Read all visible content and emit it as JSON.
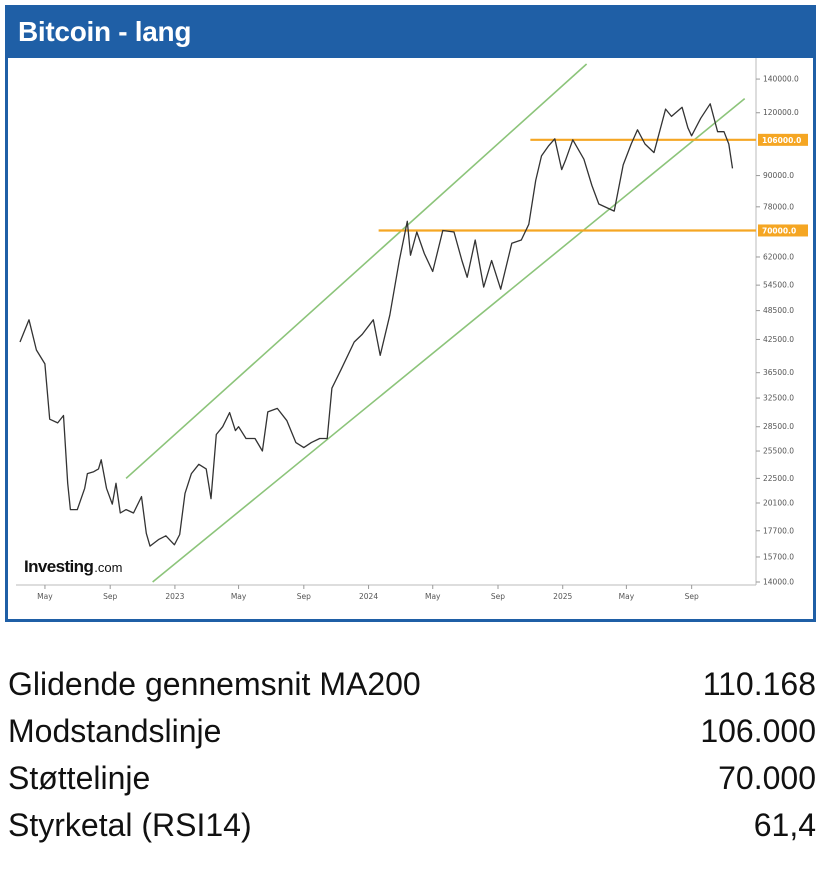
{
  "header": {
    "title": "Bitcoin - lang"
  },
  "logo": {
    "brand": "Investing",
    "suffix": ".com"
  },
  "colors": {
    "header_bg": "#1f5fa6",
    "price_line": "#333333",
    "channel": "#8cc47a",
    "level": "#f5a623"
  },
  "chart_data": {
    "type": "line",
    "title": "Bitcoin - lang",
    "xlabel": "",
    "ylabel": "",
    "grid": false,
    "x_ticks": [
      "May",
      "Sep",
      "2023",
      "May",
      "Sep",
      "2024",
      "May",
      "Sep",
      "2025",
      "May",
      "Sep"
    ],
    "x_tick_dates": [
      "2022-05-01",
      "2022-09-01",
      "2023-01-01",
      "2023-05-01",
      "2023-09-01",
      "2024-01-01",
      "2024-05-01",
      "2024-09-01",
      "2025-01-01",
      "2025-05-01",
      "2025-09-01"
    ],
    "y_ticks": [
      "140000.0",
      "120000.0",
      "90000.0",
      "78000.0",
      "62000.0",
      "54500.0",
      "48500.0",
      "42500.0",
      "36500.0",
      "32500.0",
      "28500.0",
      "25500.0",
      "22500.0",
      "20100.0",
      "17700.0",
      "15700.0",
      "14000.0"
    ],
    "y_scale": "log",
    "y_range": [
      14000,
      150000
    ],
    "series": [
      {
        "values": [
          [
            "2022-03-15",
            42000
          ],
          [
            "2022-04-01",
            46500
          ],
          [
            "2022-04-15",
            40500
          ],
          [
            "2022-05-01",
            38000
          ],
          [
            "2022-05-10",
            29500
          ],
          [
            "2022-05-25",
            29000
          ],
          [
            "2022-06-05",
            30000
          ],
          [
            "2022-06-13",
            22000
          ],
          [
            "2022-06-18",
            19500
          ],
          [
            "2022-07-01",
            19500
          ],
          [
            "2022-07-15",
            21500
          ],
          [
            "2022-07-20",
            23000
          ],
          [
            "2022-08-01",
            23200
          ],
          [
            "2022-08-10",
            23500
          ],
          [
            "2022-08-15",
            24500
          ],
          [
            "2022-08-25",
            21500
          ],
          [
            "2022-09-05",
            20000
          ],
          [
            "2022-09-12",
            22000
          ],
          [
            "2022-09-20",
            19200
          ],
          [
            "2022-10-01",
            19500
          ],
          [
            "2022-10-15",
            19200
          ],
          [
            "2022-10-30",
            20700
          ],
          [
            "2022-11-08",
            17500
          ],
          [
            "2022-11-15",
            16500
          ],
          [
            "2022-12-01",
            17000
          ],
          [
            "2022-12-15",
            17300
          ],
          [
            "2022-12-31",
            16600
          ],
          [
            "2023-01-10",
            17400
          ],
          [
            "2023-01-20",
            21000
          ],
          [
            "2023-02-01",
            23000
          ],
          [
            "2023-02-15",
            24000
          ],
          [
            "2023-03-01",
            23500
          ],
          [
            "2023-03-10",
            20500
          ],
          [
            "2023-03-20",
            27500
          ],
          [
            "2023-04-01",
            28500
          ],
          [
            "2023-04-14",
            30400
          ],
          [
            "2023-04-25",
            28000
          ],
          [
            "2023-05-01",
            28500
          ],
          [
            "2023-05-15",
            27000
          ],
          [
            "2023-06-01",
            27000
          ],
          [
            "2023-06-15",
            25500
          ],
          [
            "2023-06-25",
            30500
          ],
          [
            "2023-07-13",
            31000
          ],
          [
            "2023-07-31",
            29300
          ],
          [
            "2023-08-17",
            26500
          ],
          [
            "2023-09-01",
            25900
          ],
          [
            "2023-09-15",
            26500
          ],
          [
            "2023-10-01",
            27000
          ],
          [
            "2023-10-15",
            27000
          ],
          [
            "2023-10-24",
            34000
          ],
          [
            "2023-11-10",
            37000
          ],
          [
            "2023-12-05",
            42000
          ],
          [
            "2023-12-20",
            43500
          ],
          [
            "2024-01-10",
            46500
          ],
          [
            "2024-01-23",
            39500
          ],
          [
            "2024-02-10",
            47500
          ],
          [
            "2024-02-28",
            61000
          ],
          [
            "2024-03-14",
            73000
          ],
          [
            "2024-03-20",
            62500
          ],
          [
            "2024-04-01",
            69500
          ],
          [
            "2024-04-15",
            63000
          ],
          [
            "2024-05-01",
            58000
          ],
          [
            "2024-05-20",
            70000
          ],
          [
            "2024-06-10",
            69500
          ],
          [
            "2024-06-25",
            61000
          ],
          [
            "2024-07-05",
            56500
          ],
          [
            "2024-07-20",
            67000
          ],
          [
            "2024-08-05",
            54000
          ],
          [
            "2024-08-20",
            61000
          ],
          [
            "2024-09-06",
            53500
          ],
          [
            "2024-09-27",
            66000
          ],
          [
            "2024-10-15",
            67000
          ],
          [
            "2024-10-29",
            72000
          ],
          [
            "2024-11-11",
            88000
          ],
          [
            "2024-11-22",
            98500
          ],
          [
            "2024-12-05",
            103000
          ],
          [
            "2024-12-17",
            106500
          ],
          [
            "2024-12-30",
            92500
          ],
          [
            "2025-01-07",
            97000
          ],
          [
            "2025-01-20",
            106000
          ],
          [
            "2025-02-10",
            97000
          ],
          [
            "2025-02-25",
            86000
          ],
          [
            "2025-03-10",
            79000
          ],
          [
            "2025-04-08",
            76500
          ],
          [
            "2025-04-25",
            94500
          ],
          [
            "2025-05-10",
            104000
          ],
          [
            "2025-05-22",
            111000
          ],
          [
            "2025-06-05",
            104000
          ],
          [
            "2025-06-22",
            100000
          ],
          [
            "2025-07-14",
            122000
          ],
          [
            "2025-07-25",
            118000
          ],
          [
            "2025-08-14",
            123000
          ],
          [
            "2025-08-25",
            112000
          ],
          [
            "2025-09-01",
            108000
          ],
          [
            "2025-09-18",
            117000
          ],
          [
            "2025-10-06",
            125000
          ],
          [
            "2025-10-20",
            110000
          ],
          [
            "2025-11-01",
            110000
          ],
          [
            "2025-11-10",
            104000
          ],
          [
            "2025-11-17",
            93000
          ]
        ]
      }
    ],
    "channel_lines": [
      {
        "from": [
          "2022-10-01",
          22500
        ],
        "to": [
          "2025-02-15",
          150000
        ]
      },
      {
        "from": [
          "2022-11-20",
          14000
        ],
        "to": [
          "2025-12-10",
          128000
        ]
      }
    ],
    "horizontal_levels": [
      {
        "label": "106000.0",
        "value": 106000,
        "from_date": "2024-11-01"
      },
      {
        "label": "70000.0",
        "value": 70000,
        "from_date": "2024-01-20"
      }
    ]
  },
  "stats": [
    {
      "label": "Glidende gennemsnit MA200",
      "value": "110.168"
    },
    {
      "label": "Modstandslinje",
      "value": "106.000"
    },
    {
      "label": "Støttelinje",
      "value": "70.000"
    },
    {
      "label": "Styrketal (RSI14)",
      "value": "61,4"
    }
  ]
}
